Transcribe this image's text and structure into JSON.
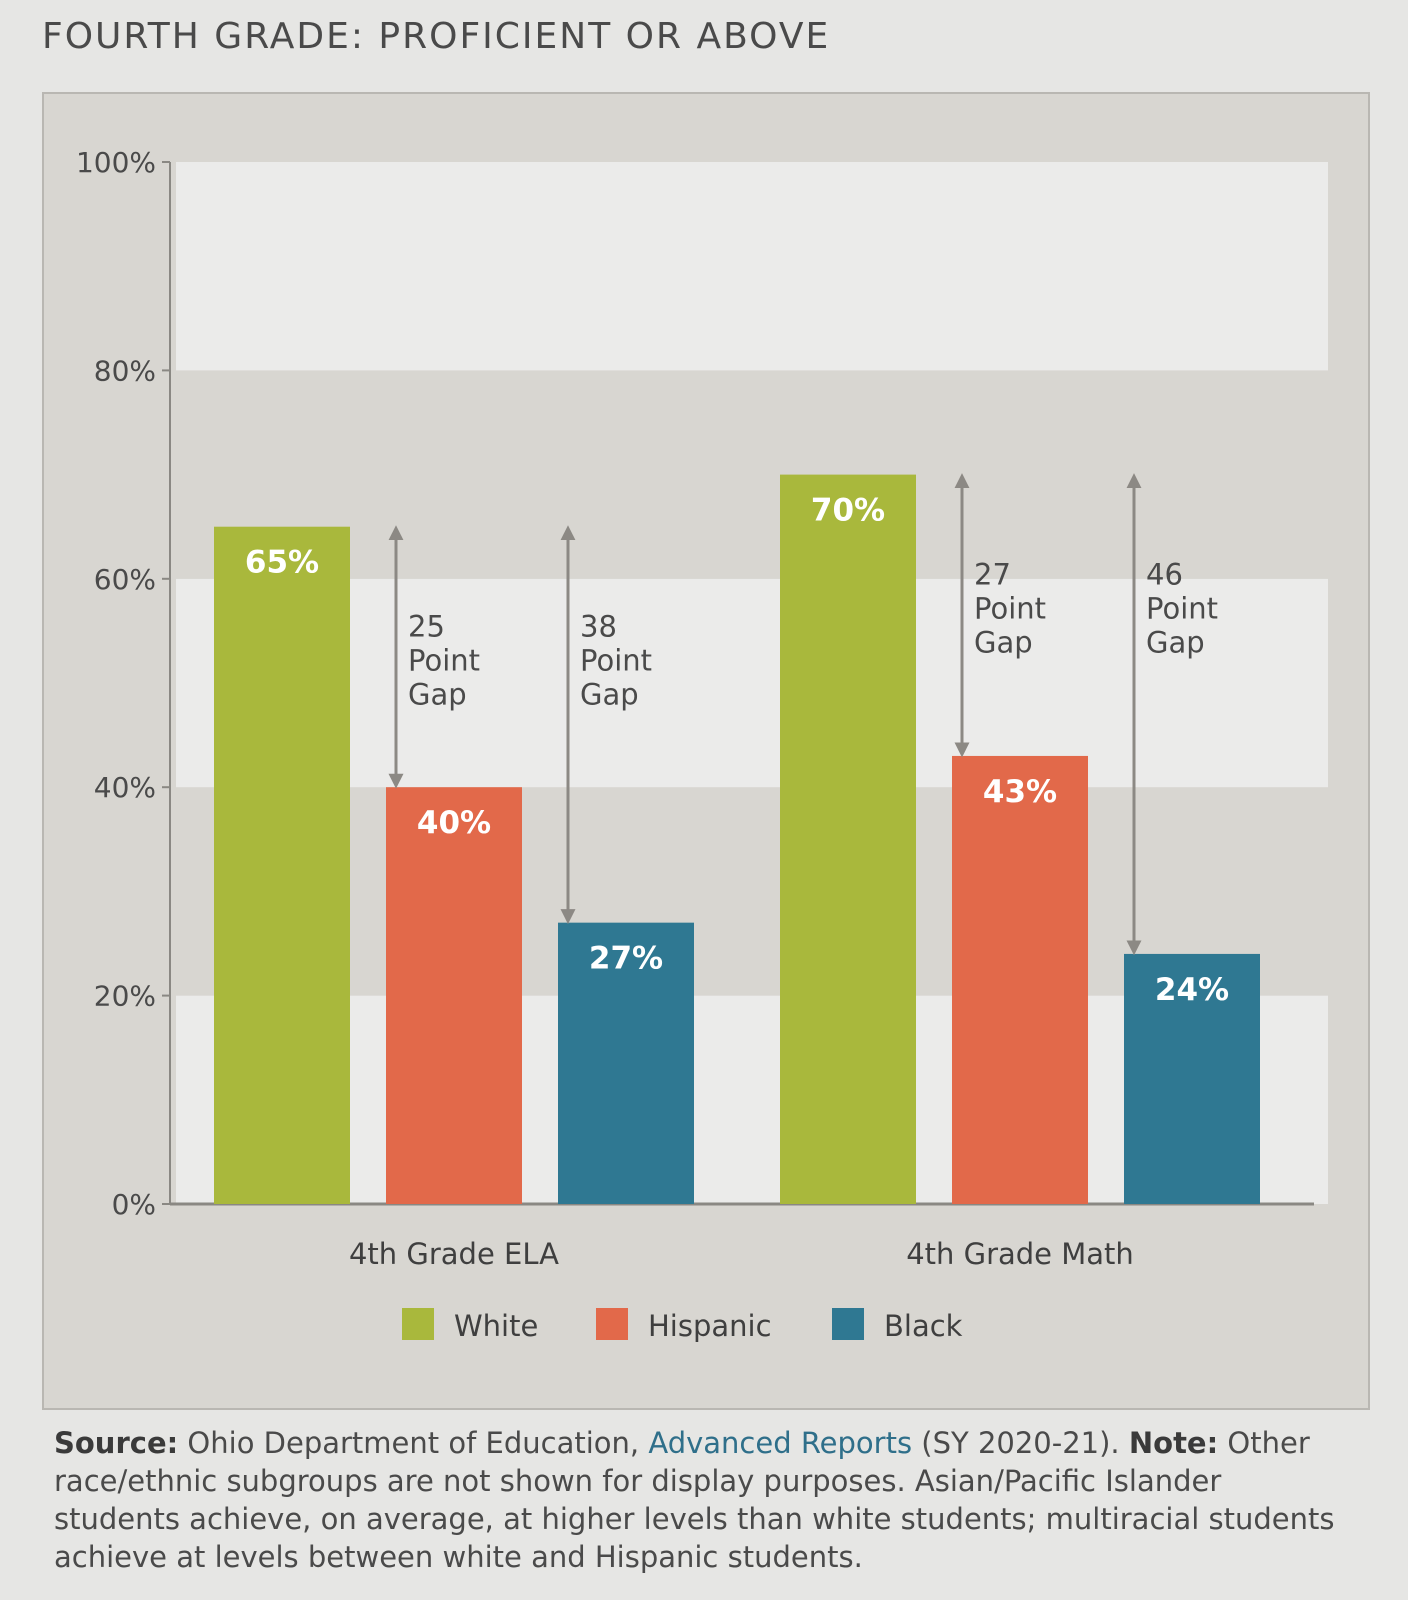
{
  "page": {
    "title": "FOURTH GRADE: PROFICIENT OR ABOVE"
  },
  "colors": {
    "white": "#a9b83c",
    "hispanic": "#e2694a",
    "black": "#2f7892",
    "band_light": "#ebebea",
    "band_dark": "#d8d6d1",
    "arrow": "#8c8984",
    "link": "#2f6f8a"
  },
  "chart_data": {
    "type": "bar",
    "title": "FOURTH GRADE: PROFICIENT OR ABOVE",
    "categories": [
      "4th Grade ELA",
      "4th Grade Math"
    ],
    "series": [
      {
        "name": "White",
        "values": [
          65,
          70
        ],
        "labels": [
          "65%",
          "70%"
        ],
        "color": "#a9b83c"
      },
      {
        "name": "Hispanic",
        "values": [
          40,
          43
        ],
        "labels": [
          "40%",
          "43%"
        ],
        "color": "#e2694a"
      },
      {
        "name": "Black",
        "values": [
          27,
          24
        ],
        "labels": [
          "27%",
          "24%"
        ],
        "color": "#2f7892"
      }
    ],
    "ylim": [
      0,
      100
    ],
    "y_ticks": [
      0,
      20,
      40,
      60,
      80,
      100
    ],
    "y_tick_labels": [
      "0%",
      "20%",
      "40%",
      "60%",
      "80%",
      "100%"
    ],
    "grid": false,
    "legend_position": "bottom",
    "annotations": [
      {
        "category": 0,
        "from": 65,
        "to": 40,
        "lines": [
          "25",
          "Point",
          "Gap"
        ]
      },
      {
        "category": 0,
        "from": 65,
        "to": 27,
        "lines": [
          "38",
          "Point",
          "Gap"
        ]
      },
      {
        "category": 1,
        "from": 70,
        "to": 43,
        "lines": [
          "27",
          "Point",
          "Gap"
        ]
      },
      {
        "category": 1,
        "from": 70,
        "to": 24,
        "lines": [
          "46",
          "Point",
          "Gap"
        ]
      }
    ]
  },
  "footnote": {
    "source_label": "Source:",
    "source_text": " Ohio Department of Education, ",
    "source_link": "Advanced Reports",
    "source_year": " (SY 2020-21). ",
    "note_label": "Note:",
    "note_text": " Other race/ethnic subgroups are not shown for display purposes. Asian/Pacific Islander students achieve, on average, at higher levels than white students; multiracial students achieve at levels between white and Hispanic students."
  }
}
